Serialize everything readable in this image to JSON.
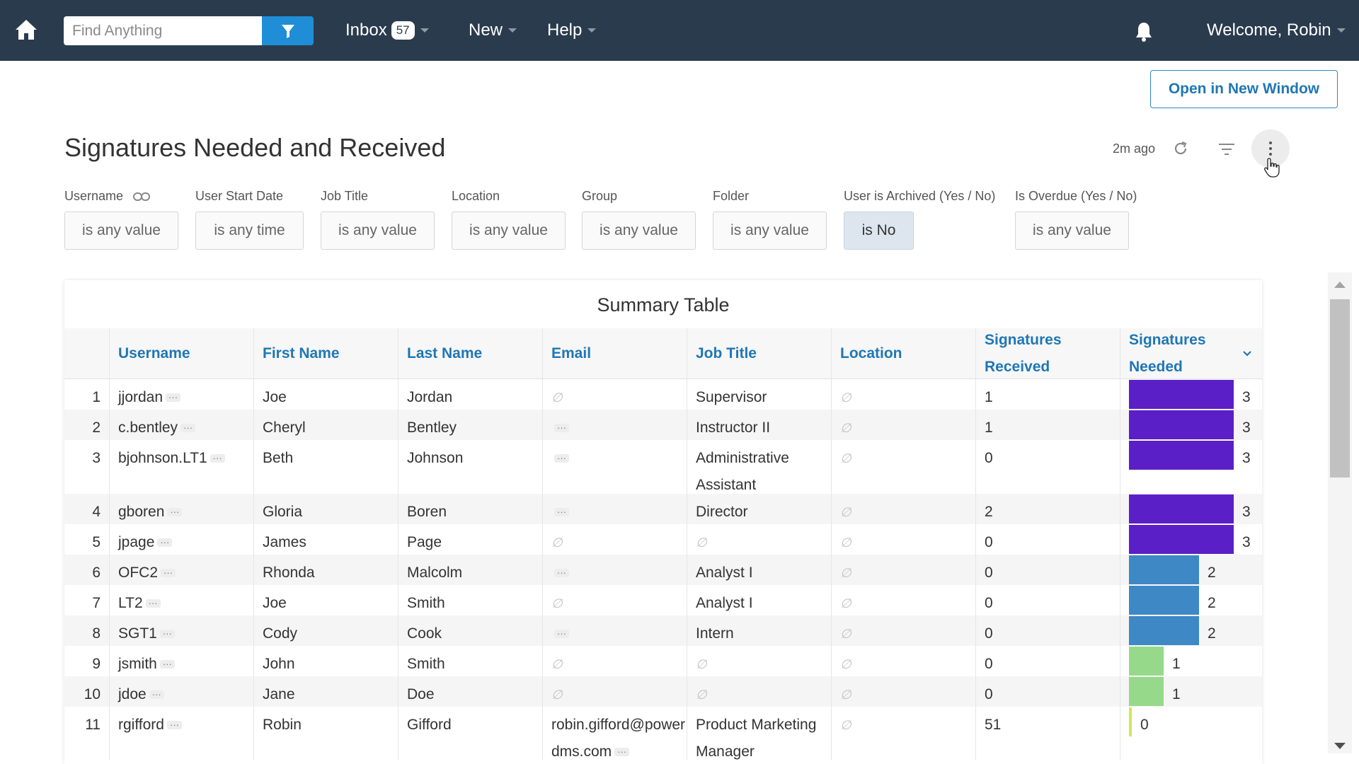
{
  "nav": {
    "search_placeholder": "Find Anything",
    "inbox_label": "Inbox",
    "inbox_count": "57",
    "new_label": "New",
    "help_label": "Help",
    "welcome_label": "Welcome, Robin"
  },
  "open_window_label": "Open in New Window",
  "dashboard": {
    "title": "Signatures Needed and Received",
    "updated": "2m ago"
  },
  "filters": [
    {
      "label": "Username",
      "value": "is any value"
    },
    {
      "label": "User Start Date",
      "value": "is any time"
    },
    {
      "label": "Job Title",
      "value": "is any value"
    },
    {
      "label": "Location",
      "value": "is any value"
    },
    {
      "label": "Group",
      "value": "is any value"
    },
    {
      "label": "Folder",
      "value": "is any value"
    },
    {
      "label": "User is Archived (Yes / No)",
      "value": "is No"
    },
    {
      "label": "Is Overdue (Yes / No)",
      "value": "is any value"
    }
  ],
  "table": {
    "title": "Summary Table",
    "columns": [
      "Username",
      "First Name",
      "Last Name",
      "Email",
      "Job Title",
      "Location",
      "Signatures Received",
      "Signatures Needed"
    ],
    "rows": [
      {
        "n": "1",
        "username": "jjordan",
        "first": "Joe",
        "last": "Jordan",
        "email": null,
        "email_more": false,
        "job": "Supervisor",
        "location": null,
        "received": "1",
        "needed": 3
      },
      {
        "n": "2",
        "username": "c.bentley",
        "first": "Cheryl",
        "last": "Bentley",
        "email": "",
        "email_more": true,
        "job": "Instructor II",
        "location": null,
        "received": "1",
        "needed": 3
      },
      {
        "n": "3",
        "username": "bjohnson.LT1",
        "first": "Beth",
        "last": "Johnson",
        "email": "",
        "email_more": true,
        "job": "Administrative Assistant",
        "location": null,
        "received": "0",
        "needed": 3
      },
      {
        "n": "4",
        "username": "gboren",
        "first": "Gloria",
        "last": "Boren",
        "email": "",
        "email_more": true,
        "job": "Director",
        "location": null,
        "received": "2",
        "needed": 3
      },
      {
        "n": "5",
        "username": "jpage",
        "first": "James",
        "last": "Page",
        "email": null,
        "email_more": false,
        "job": null,
        "location": null,
        "received": "0",
        "needed": 3
      },
      {
        "n": "6",
        "username": "OFC2",
        "first": "Rhonda",
        "last": "Malcolm",
        "email": "",
        "email_more": true,
        "job": "Analyst I",
        "location": null,
        "received": "0",
        "needed": 2
      },
      {
        "n": "7",
        "username": "LT2",
        "first": "Joe",
        "last": "Smith",
        "email": null,
        "email_more": false,
        "job": "Analyst I",
        "location": null,
        "received": "0",
        "needed": 2
      },
      {
        "n": "8",
        "username": "SGT1",
        "first": "Cody",
        "last": "Cook",
        "email": "",
        "email_more": true,
        "job": "Intern",
        "location": null,
        "received": "0",
        "needed": 2
      },
      {
        "n": "9",
        "username": "jsmith",
        "first": "John",
        "last": "Smith",
        "email": null,
        "email_more": false,
        "job": null,
        "location": null,
        "received": "0",
        "needed": 1
      },
      {
        "n": "10",
        "username": "jdoe",
        "first": "Jane",
        "last": "Doe",
        "email": null,
        "email_more": false,
        "job": null,
        "location": null,
        "received": "0",
        "needed": 1
      },
      {
        "n": "11",
        "username": "rgifford",
        "first": "Robin",
        "last": "Gifford",
        "email": "robin.gifford@powerdms.com",
        "email_more": true,
        "job": "Product Marketing Manager",
        "location": null,
        "received": "51",
        "needed": 0
      }
    ]
  },
  "colors": {
    "nav_bg": "#2a3b4d",
    "accent": "#1f77b4",
    "bar_3": "#5b1fc7",
    "bar_2": "#3e88c6",
    "bar_1": "#97d98a",
    "bar_0": "#cfe85c"
  },
  "null_symbol": "∅",
  "more_symbol": "···"
}
